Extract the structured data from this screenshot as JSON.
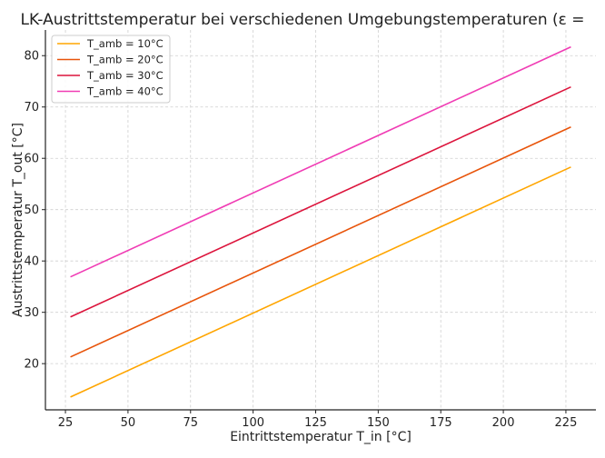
{
  "chart_data": {
    "type": "line",
    "title": "LK-Austrittstemperatur bei verschiedenen Umgebungstemperaturen (ε =",
    "xlabel": "Eintrittstemperatur T_in [°C]",
    "ylabel": "Austrittstemperatur T_out [°C]",
    "xlim": [
      17,
      237
    ],
    "ylim": [
      11,
      85
    ],
    "xticks": [
      25,
      50,
      75,
      100,
      125,
      150,
      175,
      200,
      225
    ],
    "yticks": [
      20,
      30,
      40,
      50,
      60,
      70,
      80
    ],
    "grid": true,
    "legend_position": "top-left",
    "x": [
      27,
      227
    ],
    "series": [
      {
        "name": "T_amb = 10°C",
        "color": "#FFA500",
        "values": [
          13.5,
          58.3
        ]
      },
      {
        "name": "T_amb = 20°C",
        "color": "#E8540A",
        "values": [
          21.3,
          66.1
        ]
      },
      {
        "name": "T_amb = 30°C",
        "color": "#DC143C",
        "values": [
          29.1,
          73.9
        ]
      },
      {
        "name": "T_amb = 40°C",
        "color": "#F03CB4",
        "values": [
          36.9,
          81.7
        ]
      }
    ]
  }
}
